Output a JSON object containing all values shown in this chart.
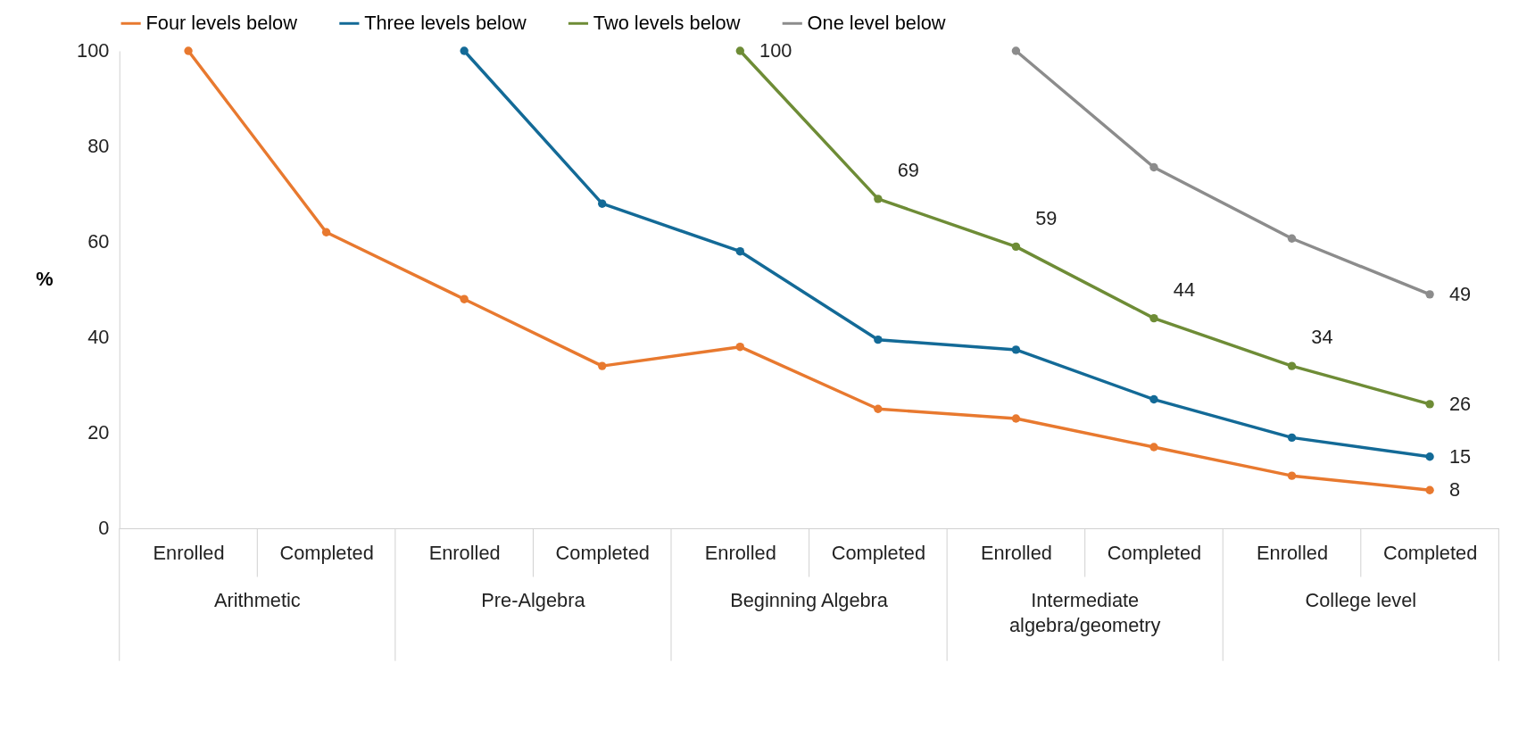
{
  "chart_data": {
    "type": "line",
    "ylabel": "%",
    "categories": [
      "Enrolled",
      "Completed",
      "Enrolled",
      "Completed",
      "Enrolled",
      "Completed",
      "Enrolled",
      "Completed",
      "Enrolled",
      "Completed"
    ],
    "annotations": [
      "Arithmetic",
      "Pre-Algebra",
      "Beginning Algebra",
      "Intermediate algebra/geometry",
      "College level"
    ],
    "series": [
      {
        "name": "Four levels below",
        "color": "#e8792f",
        "values": [
          100,
          62,
          48,
          34,
          38,
          25,
          23,
          17,
          11,
          8
        ],
        "value_labels": [
          null,
          null,
          null,
          null,
          null,
          null,
          null,
          null,
          null,
          "8"
        ]
      },
      {
        "name": "Three levels below",
        "color": "#136a97",
        "values": [
          null,
          null,
          100,
          68,
          58,
          39.5,
          37.4,
          27,
          19,
          15
        ],
        "value_labels": [
          null,
          null,
          null,
          null,
          null,
          null,
          null,
          null,
          null,
          "15"
        ]
      },
      {
        "name": "Two levels below",
        "color": "#6e8c36",
        "values": [
          null,
          null,
          null,
          null,
          100,
          69,
          59,
          44,
          34,
          26
        ],
        "value_labels": [
          null,
          null,
          null,
          null,
          "100",
          "69",
          "59",
          "44",
          "34",
          "26"
        ]
      },
      {
        "name": "One level below",
        "color": "#8c8c8c",
        "values": [
          null,
          null,
          null,
          null,
          null,
          null,
          100,
          75.6,
          60.7,
          49
        ],
        "value_labels": [
          null,
          null,
          null,
          null,
          null,
          null,
          null,
          null,
          null,
          "49"
        ]
      }
    ],
    "ylim": [
      0,
      100
    ],
    "yticks": [
      0,
      20,
      40,
      60,
      80,
      100
    ],
    "legend": "top",
    "marker": "circle",
    "line_style": "solid",
    "grid": false
  }
}
